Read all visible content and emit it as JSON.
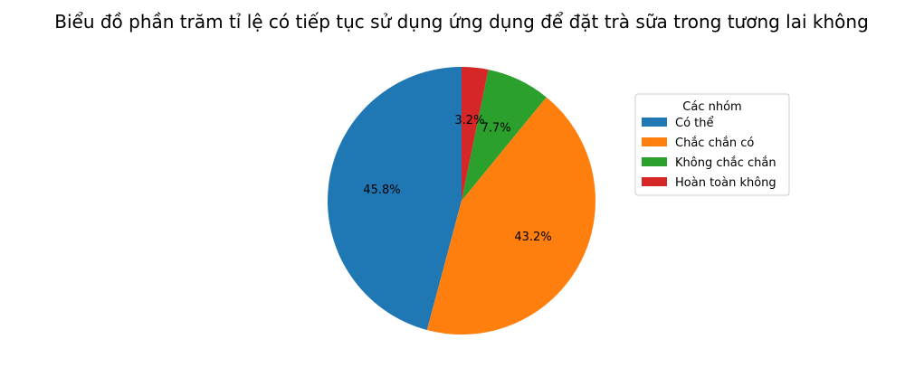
{
  "chart_data": {
    "type": "pie",
    "title": "Biểu đồ phần trăm tỉ lệ có tiếp tục sử dụng ứng dụng để đặt trà sữa trong tương lai không",
    "start_angle_deg": 90,
    "direction": "counterclockwise",
    "slices": [
      {
        "name": "Có thể",
        "value": 45.8,
        "label": "45.8%",
        "color": "#1f77b4"
      },
      {
        "name": "Chắc chắn có",
        "value": 43.2,
        "label": "43.2%",
        "color": "#ff7f0e"
      },
      {
        "name": "Không chắc chắn",
        "value": 7.7,
        "label": "7.7%",
        "color": "#2ca02c"
      },
      {
        "name": "Hoàn toàn không",
        "value": 3.2,
        "label": "3.2%",
        "color": "#d62728"
      }
    ],
    "legend": {
      "title": "Các nhóm",
      "placement": "right"
    }
  }
}
